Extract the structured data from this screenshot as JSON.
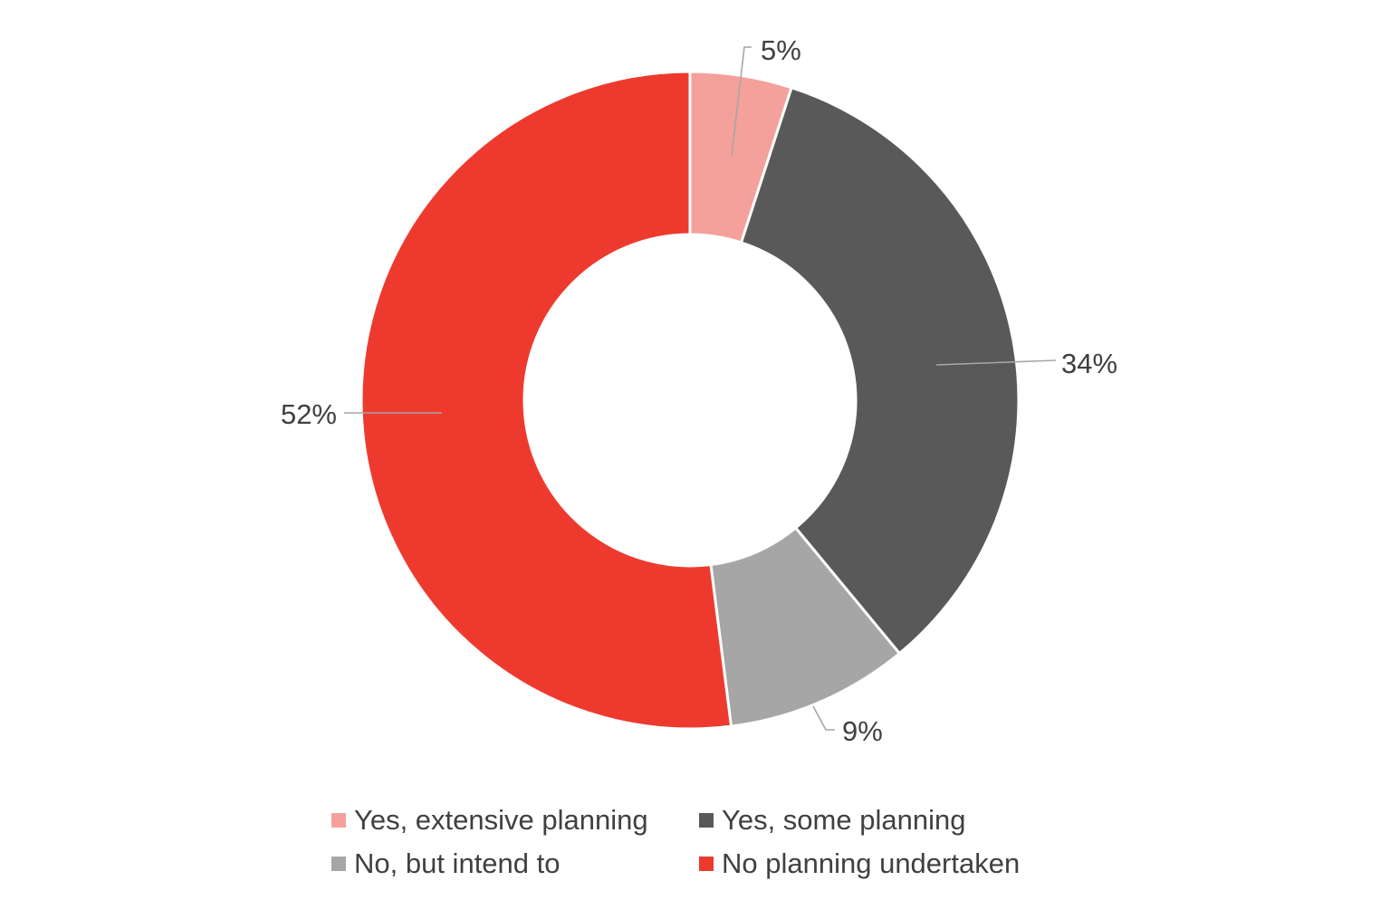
{
  "chart_data": {
    "type": "pie",
    "variant": "donut",
    "title": "",
    "categories": [
      "Yes, extensive planning",
      "Yes, some planning",
      "No, but intend to",
      "No planning undertaken"
    ],
    "values": [
      5,
      34,
      9,
      52
    ],
    "value_labels": [
      "5%",
      "34%",
      "9%",
      "52%"
    ],
    "colors": [
      "#F4A19B",
      "#595959",
      "#A6A6A6",
      "#EE3A2E"
    ],
    "legend_position": "bottom",
    "start_angle_deg": 0,
    "direction": "clockwise"
  }
}
